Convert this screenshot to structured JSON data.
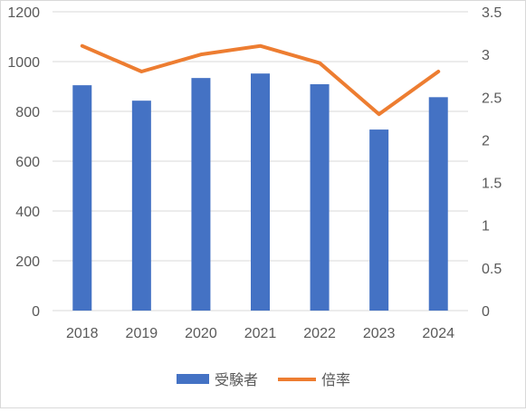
{
  "chart_data": {
    "type": "bar",
    "title": "",
    "xlabel": "",
    "ylabel": "",
    "categories": [
      "2018",
      "2019",
      "2020",
      "2021",
      "2022",
      "2023",
      "2024"
    ],
    "series": [
      {
        "name": "受験者",
        "type": "bar",
        "axis": "left",
        "color": "#4472C4",
        "values": [
          905,
          843,
          934,
          952,
          909,
          727,
          857
        ]
      },
      {
        "name": "倍率",
        "type": "line",
        "axis": "right",
        "color": "#ED7D31",
        "values": [
          3.1,
          2.8,
          3.0,
          3.1,
          2.9,
          2.3,
          2.8
        ]
      }
    ],
    "y_left": {
      "range": [
        0,
        1200
      ],
      "ticks": [
        "0",
        "200",
        "400",
        "600",
        "800",
        "1000",
        "1200"
      ]
    },
    "y_right": {
      "range": [
        0,
        3.5
      ],
      "ticks": [
        "0",
        "0.5",
        "1",
        "1.5",
        "2",
        "2.5",
        "3",
        "3.5"
      ]
    },
    "grid": true,
    "legend": {
      "position": "bottom"
    }
  }
}
